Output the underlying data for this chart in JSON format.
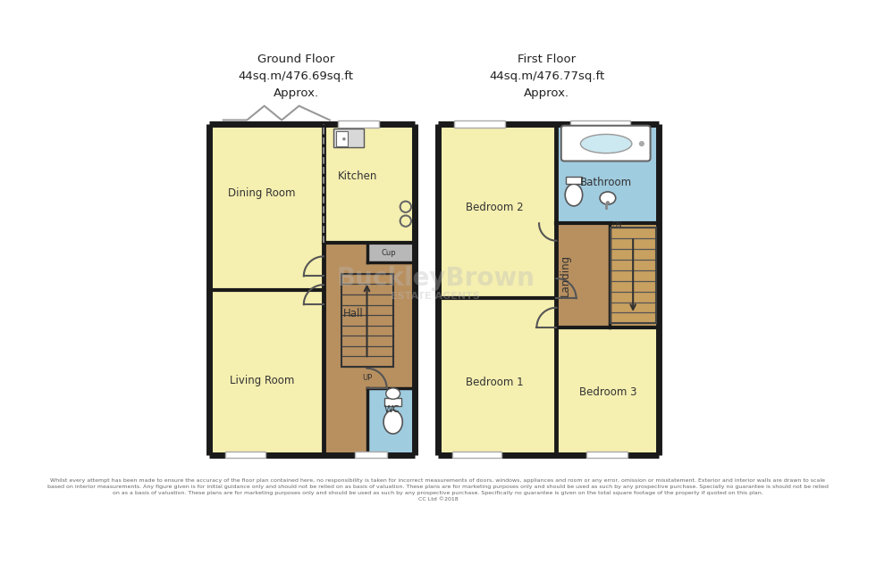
{
  "bg_color": "#ffffff",
  "wall_color": "#1a1a1a",
  "room_fill_yellow": "#f5efb0",
  "room_fill_brown": "#b89060",
  "room_fill_blue": "#a0cce0",
  "room_fill_gray": "#b8b8b8",
  "room_fill_stair": "#c8a060",
  "ground_floor_title": "Ground Floor\n44sq.m/476.69sq.ft\nApprox.",
  "first_floor_title": "First Floor\n44sq.m/476.77sq.ft\nApprox.",
  "title_fontsize": 9,
  "label_fontsize": 8.5,
  "footer_text": "Whilst every attempt has been made to ensure the accuracy of the floor plan contained here, no responsibility is taken for incorrect measurements of doors, windows, appliances and room or any error, omission or misstatement. Exterior and interior walls are drawn to scale\nbased on interior measurements. Any figure given is for initial guidance only and should not be relied on as basis of valuation. These plans are for marketing purposes only and should be used as such by any prospective purchase. Specially no guarantee is should not be relied\non as a basis of valuation. These plans are for marketing purposes only and should be used as such by any prospective purchase. Specifically no guarantee is given on the total square footage of the property if quoted on this plan.\nCC Ltd ©2018",
  "watermark_line1": "BuckleyBrown",
  "watermark_line2": "ESTATE AGENTS",
  "watermark_color": "#bbbbbb",
  "watermark_alpha": 0.35
}
